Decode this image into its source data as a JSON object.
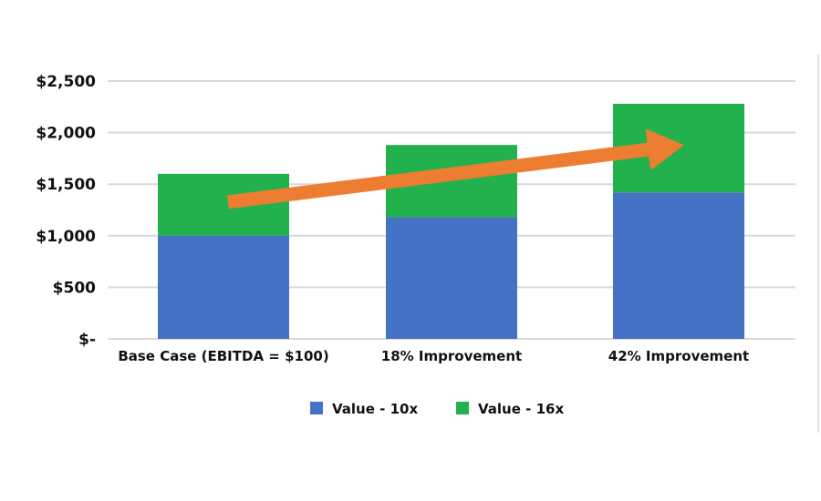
{
  "chart_data": {
    "type": "bar",
    "stacked": true,
    "categories": [
      "Base Case (EBITDA = $100)",
      "18% Improvement",
      "42% Improvement"
    ],
    "series": [
      {
        "name": "Value - 10x",
        "values": [
          1000,
          1180,
          1420
        ],
        "color": "#4472c4"
      },
      {
        "name": "Value - 16x",
        "values": [
          600,
          700,
          860
        ],
        "color": "#22b14c"
      }
    ],
    "yticks": [
      0,
      500,
      1000,
      1500,
      2000,
      2500
    ],
    "ytick_labels": [
      "$-",
      "$500",
      "$1,000",
      "$1,500",
      "$2,000",
      "$2,500"
    ],
    "ylim": [
      0,
      2500
    ],
    "grid": true,
    "legend": "bottom",
    "annotations": [
      {
        "type": "arrow",
        "color": "#ed7d31",
        "from": {
          "category": 0,
          "value": 1300
        },
        "to": {
          "category": 2,
          "value": 1880
        }
      }
    ]
  }
}
